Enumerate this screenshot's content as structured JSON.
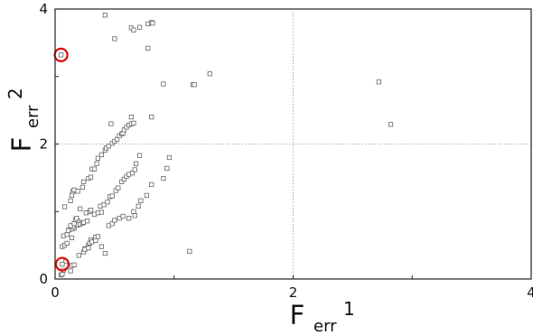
{
  "chart_data": {
    "type": "scatter",
    "title": "",
    "xlabel": {
      "main": "F",
      "subscript": "err",
      "superscript": "1"
    },
    "ylabel": {
      "main": "F",
      "subscript": "err",
      "superscript": "2"
    },
    "xlim": [
      0,
      4
    ],
    "ylim": [
      0,
      4
    ],
    "x_ticks": [
      0,
      1,
      2,
      3,
      4
    ],
    "y_ticks": [
      0,
      1,
      2,
      3,
      4
    ],
    "x_tick_labels": [
      "0",
      "",
      "2",
      "",
      "4"
    ],
    "y_tick_labels": [
      "0",
      "",
      "2",
      "",
      "4"
    ],
    "reference_lines": {
      "x": 2,
      "y": 2,
      "style": "dotted"
    },
    "grid": false,
    "marker": "open-square",
    "colors": {
      "marker": "#666666",
      "axis": "#222222",
      "reference": "#999999",
      "highlight": "#e00000"
    },
    "points": [
      [
        0.42,
        3.91
      ],
      [
        0.64,
        3.72
      ],
      [
        0.66,
        3.69
      ],
      [
        0.71,
        3.73
      ],
      [
        0.78,
        3.78
      ],
      [
        0.81,
        3.8
      ],
      [
        0.82,
        3.79
      ],
      [
        0.5,
        3.56
      ],
      [
        0.78,
        3.42
      ],
      [
        1.16,
        2.88
      ],
      [
        0.81,
        2.4
      ],
      [
        0.91,
        2.89
      ],
      [
        1.17,
        2.88
      ],
      [
        1.3,
        3.04
      ],
      [
        2.72,
        2.92
      ],
      [
        2.82,
        2.29
      ],
      [
        0.05,
        0.06
      ],
      [
        0.06,
        0.07
      ],
      [
        0.07,
        0.13
      ],
      [
        0.09,
        0.26
      ],
      [
        0.13,
        0.12
      ],
      [
        0.14,
        0.2
      ],
      [
        0.16,
        0.21
      ],
      [
        0.06,
        0.48
      ],
      [
        0.08,
        0.5
      ],
      [
        0.1,
        0.53
      ],
      [
        0.14,
        0.61
      ],
      [
        0.16,
        0.75
      ],
      [
        0.19,
        0.86
      ],
      [
        0.21,
        1.04
      ],
      [
        0.2,
        0.35
      ],
      [
        0.24,
        0.4
      ],
      [
        0.25,
        0.45
      ],
      [
        0.28,
        0.5
      ],
      [
        0.3,
        0.58
      ],
      [
        0.34,
        0.62
      ],
      [
        0.36,
        0.63
      ],
      [
        0.08,
        1.07
      ],
      [
        0.13,
        1.16
      ],
      [
        0.14,
        1.24
      ],
      [
        0.15,
        1.3
      ],
      [
        0.16,
        1.32
      ],
      [
        0.19,
        1.3
      ],
      [
        0.23,
        1.36
      ],
      [
        0.24,
        1.44
      ],
      [
        0.28,
        1.49
      ],
      [
        0.3,
        1.51
      ],
      [
        0.31,
        1.63
      ],
      [
        0.33,
        1.63
      ],
      [
        0.35,
        1.71
      ],
      [
        0.36,
        1.79
      ],
      [
        0.39,
        1.84
      ],
      [
        0.42,
        1.91
      ],
      [
        0.43,
        1.94
      ],
      [
        0.45,
        1.97
      ],
      [
        0.48,
        2.01
      ],
      [
        0.5,
        2.04
      ],
      [
        0.52,
        2.07
      ],
      [
        0.54,
        2.12
      ],
      [
        0.56,
        2.15
      ],
      [
        0.57,
        2.16
      ],
      [
        0.58,
        2.21
      ],
      [
        0.6,
        2.25
      ],
      [
        0.62,
        2.28
      ],
      [
        0.64,
        2.3
      ],
      [
        0.66,
        2.31
      ],
      [
        0.47,
        2.3
      ],
      [
        0.38,
        1.08
      ],
      [
        0.41,
        1.1
      ],
      [
        0.44,
        1.14
      ],
      [
        0.46,
        1.22
      ],
      [
        0.48,
        1.23
      ],
      [
        0.51,
        1.31
      ],
      [
        0.53,
        1.35
      ],
      [
        0.56,
        1.44
      ],
      [
        0.58,
        1.48
      ],
      [
        0.6,
        1.52
      ],
      [
        0.62,
        1.55
      ],
      [
        0.65,
        1.57
      ],
      [
        0.67,
        1.62
      ],
      [
        0.68,
        1.71
      ],
      [
        0.71,
        1.83
      ],
      [
        0.64,
        2.4
      ],
      [
        0.26,
        0.98
      ],
      [
        0.29,
        1.0
      ],
      [
        0.3,
        1.02
      ],
      [
        0.33,
        0.96
      ],
      [
        0.36,
        0.98
      ],
      [
        0.39,
        0.99
      ],
      [
        0.19,
        0.8
      ],
      [
        0.21,
        0.81
      ],
      [
        0.23,
        0.83
      ],
      [
        0.24,
        0.84
      ],
      [
        0.27,
        0.86
      ],
      [
        0.12,
        0.73
      ],
      [
        0.14,
        0.74
      ],
      [
        0.15,
        0.77
      ],
      [
        0.17,
        0.88
      ],
      [
        0.18,
        0.9
      ],
      [
        0.07,
        0.64
      ],
      [
        0.1,
        0.66
      ],
      [
        0.11,
        0.72
      ],
      [
        0.13,
        0.79
      ],
      [
        0.16,
        0.82
      ],
      [
        0.25,
        0.44
      ],
      [
        0.28,
        0.46
      ],
      [
        0.29,
        0.53
      ],
      [
        0.31,
        0.55
      ],
      [
        0.34,
        0.57
      ],
      [
        0.45,
        0.79
      ],
      [
        0.48,
        0.82
      ],
      [
        0.5,
        0.87
      ],
      [
        0.54,
        0.9
      ],
      [
        0.57,
        0.93
      ],
      [
        0.62,
        0.9
      ],
      [
        0.66,
        1.0
      ],
      [
        0.7,
        1.08
      ],
      [
        0.72,
        1.16
      ],
      [
        0.77,
        1.24
      ],
      [
        0.81,
        1.4
      ],
      [
        0.91,
        1.49
      ],
      [
        0.94,
        1.64
      ],
      [
        0.96,
        1.8
      ],
      [
        0.67,
        0.94
      ],
      [
        0.39,
        0.48
      ],
      [
        0.42,
        0.38
      ],
      [
        1.13,
        0.41
      ],
      [
        0.05,
        3.32
      ],
      [
        0.06,
        0.22
      ]
    ],
    "highlighted_points": [
      [
        0.05,
        3.32
      ],
      [
        0.06,
        0.22
      ]
    ]
  }
}
